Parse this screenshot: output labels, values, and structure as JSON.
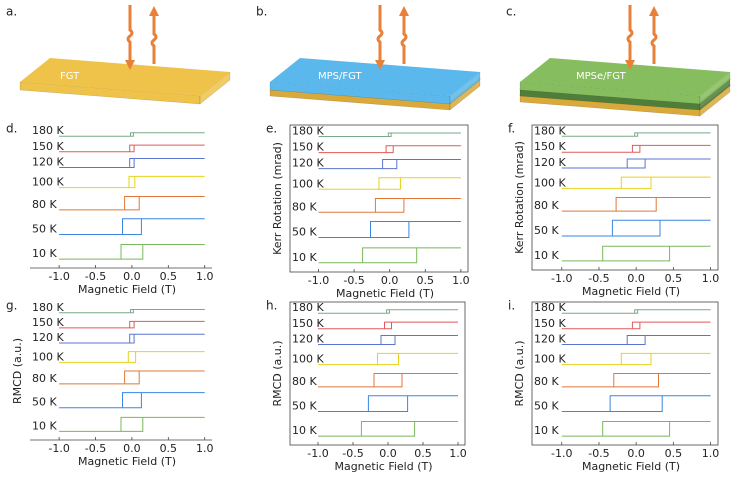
{
  "diagrams": [
    {
      "label": "a.",
      "material": "FGT",
      "top_color": "#efc24a",
      "layers": [
        "#efc24a"
      ]
    },
    {
      "label": "b.",
      "material": "MPS/FGT",
      "top_color": "#5ab8ec",
      "layers": [
        "#d9a93a",
        "#5ab8ec"
      ]
    },
    {
      "label": "c.",
      "material": "MPSe/FGT",
      "top_color": "#86bd5e",
      "layers": [
        "#d9a93a",
        "#4f7d3a",
        "#86bd5e"
      ]
    }
  ],
  "chart_data": [
    {
      "type": "line",
      "panel_label": "d.",
      "xlabel": "Magnetic Field (T)",
      "frame": false,
      "xlim": [
        -1.4,
        1.1
      ],
      "ylim": [
        -0.8,
        12
      ],
      "xticks": [
        {
          "value": -1,
          "label": "-1.0"
        },
        {
          "value": -0.5,
          "label": "-0.5"
        },
        {
          "value": 0,
          "label": "0.0"
        },
        {
          "value": 0.5,
          "label": "0.5"
        },
        {
          "value": 1,
          "label": "1.0"
        }
      ],
      "series": [
        {
          "name": "180 K",
          "color": "#7aa88a",
          "x": [
            -1,
            0.02,
            0.02,
            1,
            -0.02,
            -0.02
          ],
          "values": [
            11,
            11,
            11.3,
            11.3,
            11.3,
            11
          ]
        },
        {
          "name": "150 K",
          "color": "#e05a5a",
          "x": [
            -1,
            0.03,
            0.03,
            1,
            -0.03,
            -0.03
          ],
          "values": [
            9.6,
            9.6,
            10.2,
            10.2,
            10.2,
            9.6
          ]
        },
        {
          "name": "120 K",
          "color": "#5a74d0",
          "x": [
            -1,
            0.03,
            0.03,
            1,
            -0.03,
            -0.03
          ],
          "values": [
            8.2,
            8.2,
            9,
            9,
            9,
            8.2
          ]
        },
        {
          "name": "100 K",
          "color": "#e6d21a",
          "x": [
            -1,
            0.04,
            0.04,
            1,
            -0.04,
            -0.04
          ],
          "values": [
            6.4,
            6.4,
            7.4,
            7.4,
            7.4,
            6.4
          ]
        },
        {
          "name": "80 K",
          "color": "#e0783a",
          "x": [
            -1,
            0.1,
            0.1,
            1,
            -0.1,
            -0.1
          ],
          "values": [
            4.4,
            4.4,
            5.6,
            5.6,
            5.6,
            4.4
          ]
        },
        {
          "name": "50 K",
          "color": "#3a86e0",
          "x": [
            -1,
            0.13,
            0.13,
            1,
            -0.13,
            -0.13
          ],
          "values": [
            2.2,
            2.2,
            3.6,
            3.6,
            3.6,
            2.2
          ]
        },
        {
          "name": "10 K",
          "color": "#78b85a",
          "x": [
            -1,
            0.15,
            0.15,
            1,
            -0.15,
            -0.15
          ],
          "values": [
            0,
            0,
            1.3,
            1.3,
            1.3,
            0
          ]
        }
      ]
    },
    {
      "type": "line",
      "panel_label": "e.",
      "xlabel": "Magnetic Field (T)",
      "ylabel": "Kerr Rotation (mrad)",
      "frame": true,
      "xlim": [
        -1.4,
        1.1
      ],
      "ylim": [
        -0.8,
        12
      ],
      "xticks": [
        {
          "value": -1,
          "label": "-1.0"
        },
        {
          "value": -0.5,
          "label": "-0.5"
        },
        {
          "value": 0,
          "label": "0.0"
        },
        {
          "value": 0.5,
          "label": "0.5"
        },
        {
          "value": 1,
          "label": "1.0"
        }
      ],
      "series": [
        {
          "name": "180 K",
          "color": "#7aa88a",
          "x": [
            -1,
            0.02,
            0.02,
            1,
            -0.02,
            -0.02
          ],
          "values": [
            11,
            11,
            11.3,
            11.3,
            11.3,
            11
          ]
        },
        {
          "name": "150 K",
          "color": "#e05a5a",
          "x": [
            -1,
            0.05,
            0.05,
            1,
            -0.05,
            -0.05
          ],
          "values": [
            9.6,
            9.6,
            10.2,
            10.2,
            10.2,
            9.6
          ]
        },
        {
          "name": "120 K",
          "color": "#5a74d0",
          "x": [
            -1,
            0.1,
            0.1,
            1,
            -0.1,
            -0.1
          ],
          "values": [
            8.2,
            8.2,
            9,
            9,
            9,
            8.2
          ]
        },
        {
          "name": "100 K",
          "color": "#e6d21a",
          "x": [
            -1,
            0.15,
            0.15,
            1,
            -0.15,
            -0.15
          ],
          "values": [
            6.4,
            6.4,
            7.4,
            7.4,
            7.4,
            6.4
          ]
        },
        {
          "name": "80 K",
          "color": "#e0783a",
          "x": [
            -1,
            0.2,
            0.2,
            1,
            -0.2,
            -0.2
          ],
          "values": [
            4.4,
            4.4,
            5.6,
            5.6,
            5.6,
            4.4
          ]
        },
        {
          "name": "50 K",
          "color": "#3a86e0",
          "x": [
            -1,
            0.27,
            0.27,
            1,
            -0.27,
            -0.27
          ],
          "values": [
            2.2,
            2.2,
            3.6,
            3.6,
            3.6,
            2.2
          ]
        },
        {
          "name": "10 K",
          "color": "#78b85a",
          "x": [
            -1,
            0.38,
            0.38,
            1,
            -0.38,
            -0.38
          ],
          "values": [
            0,
            0,
            1.3,
            1.3,
            1.3,
            0
          ]
        }
      ]
    },
    {
      "type": "line",
      "panel_label": "f.",
      "xlabel": "Magnetic Field (T)",
      "ylabel": "Kerr Rotation (mrad)",
      "frame": true,
      "xlim": [
        -1.4,
        1.1
      ],
      "ylim": [
        -0.8,
        12
      ],
      "xticks": [
        {
          "value": -1,
          "label": "-1.0"
        },
        {
          "value": -0.5,
          "label": "-0.5"
        },
        {
          "value": 0,
          "label": "0.0"
        },
        {
          "value": 0.5,
          "label": "0.5"
        },
        {
          "value": 1,
          "label": "1.0"
        }
      ],
      "series": [
        {
          "name": "180 K",
          "color": "#7aa88a",
          "x": [
            -1,
            0.02,
            0.02,
            1,
            -0.02,
            -0.02
          ],
          "values": [
            11,
            11,
            11.3,
            11.3,
            11.3,
            11
          ]
        },
        {
          "name": "150 K",
          "color": "#e05a5a",
          "x": [
            -1,
            0.05,
            0.05,
            1,
            -0.05,
            -0.05
          ],
          "values": [
            9.6,
            9.6,
            10.2,
            10.2,
            10.2,
            9.6
          ]
        },
        {
          "name": "120 K",
          "color": "#5a74d0",
          "x": [
            -1,
            0.12,
            0.12,
            1,
            -0.12,
            -0.12
          ],
          "values": [
            8.2,
            8.2,
            9,
            9,
            9,
            8.2
          ]
        },
        {
          "name": "100 K",
          "color": "#e6d21a",
          "x": [
            -1,
            0.2,
            0.2,
            1,
            -0.2,
            -0.2
          ],
          "values": [
            6.4,
            6.4,
            7.4,
            7.4,
            7.4,
            6.4
          ]
        },
        {
          "name": "80 K",
          "color": "#e0783a",
          "x": [
            -1,
            0.27,
            0.27,
            1,
            -0.27,
            -0.27
          ],
          "values": [
            4.4,
            4.4,
            5.6,
            5.6,
            5.6,
            4.4
          ]
        },
        {
          "name": "50 K",
          "color": "#3a86e0",
          "x": [
            -1,
            0.32,
            0.32,
            1,
            -0.32,
            -0.32
          ],
          "values": [
            2.2,
            2.2,
            3.6,
            3.6,
            3.6,
            2.2
          ]
        },
        {
          "name": "10 K",
          "color": "#78b85a",
          "x": [
            -1,
            0.45,
            0.45,
            1,
            -0.45,
            -0.45
          ],
          "values": [
            0,
            0,
            1.3,
            1.3,
            1.3,
            0
          ]
        }
      ]
    },
    {
      "type": "line",
      "panel_label": "g.",
      "xlabel": "Magnetic Field (T)",
      "ylabel": "RMCD  (a.u.)",
      "frame": false,
      "xlim": [
        -1.4,
        1.1
      ],
      "ylim": [
        -0.8,
        12
      ],
      "xticks": [
        {
          "value": -1,
          "label": "-1.0"
        },
        {
          "value": -0.5,
          "label": "-0.5"
        },
        {
          "value": 0,
          "label": "0.0"
        },
        {
          "value": 0.5,
          "label": "0.5"
        },
        {
          "value": 1,
          "label": "1.0"
        }
      ],
      "series": [
        {
          "name": "180 K",
          "color": "#7aa88a",
          "x": [
            -1,
            0.02,
            0.02,
            1,
            -0.02,
            -0.02
          ],
          "values": [
            11,
            11,
            11.3,
            11.3,
            11.3,
            11
          ]
        },
        {
          "name": "150 K",
          "color": "#e05a5a",
          "x": [
            -1,
            0.03,
            0.03,
            1,
            -0.03,
            -0.03
          ],
          "values": [
            9.6,
            9.6,
            10.2,
            10.2,
            10.2,
            9.6
          ]
        },
        {
          "name": "120 K",
          "color": "#5a74d0",
          "x": [
            -1,
            0.03,
            0.03,
            1,
            -0.03,
            -0.03
          ],
          "values": [
            8.2,
            8.2,
            9,
            9,
            9,
            8.2
          ]
        },
        {
          "name": "100 K",
          "color": "#e6d21a",
          "x": [
            -1,
            0.05,
            0.05,
            1,
            -0.05,
            -0.05
          ],
          "values": [
            6.4,
            6.4,
            7.4,
            7.4,
            7.4,
            6.4
          ]
        },
        {
          "name": "80 K",
          "color": "#e0783a",
          "x": [
            -1,
            0.1,
            0.1,
            1,
            -0.1,
            -0.1
          ],
          "values": [
            4.4,
            4.4,
            5.6,
            5.6,
            5.6,
            4.4
          ]
        },
        {
          "name": "50 K",
          "color": "#3a86e0",
          "x": [
            -1,
            0.13,
            0.13,
            1,
            -0.13,
            -0.13
          ],
          "values": [
            2.2,
            2.2,
            3.6,
            3.6,
            3.6,
            2.2
          ]
        },
        {
          "name": "10 K",
          "color": "#78b85a",
          "x": [
            -1,
            0.15,
            0.15,
            1,
            -0.15,
            -0.15
          ],
          "values": [
            0,
            0,
            1.3,
            1.3,
            1.3,
            0
          ]
        }
      ]
    },
    {
      "type": "line",
      "panel_label": "h.",
      "xlabel": "Magnetic Field (T)",
      "ylabel": "RMCD  (a.u.)",
      "frame": true,
      "xlim": [
        -1.4,
        1.1
      ],
      "ylim": [
        -0.8,
        12
      ],
      "xticks": [
        {
          "value": -1,
          "label": "-1.0"
        },
        {
          "value": -0.5,
          "label": "-0.5"
        },
        {
          "value": 0,
          "label": "0.0"
        },
        {
          "value": 0.5,
          "label": "0.5"
        },
        {
          "value": 1,
          "label": "1.0"
        }
      ],
      "series": [
        {
          "name": "180 K",
          "color": "#7aa88a",
          "x": [
            -1,
            0.02,
            0.02,
            1,
            -0.02,
            -0.02
          ],
          "values": [
            11,
            11,
            11.3,
            11.3,
            11.3,
            11
          ]
        },
        {
          "name": "150 K",
          "color": "#e05a5a",
          "x": [
            -1,
            0.05,
            0.05,
            1,
            -0.05,
            -0.05
          ],
          "values": [
            9.6,
            9.6,
            10.2,
            10.2,
            10.2,
            9.6
          ]
        },
        {
          "name": "120 K",
          "color": "#5a74d0",
          "x": [
            -1,
            0.1,
            0.1,
            1,
            -0.1,
            -0.1
          ],
          "values": [
            8.2,
            8.2,
            9,
            9,
            9,
            8.2
          ]
        },
        {
          "name": "100 K",
          "color": "#e6d21a",
          "x": [
            -1,
            0.15,
            0.15,
            1,
            -0.15,
            -0.15
          ],
          "values": [
            6.4,
            6.4,
            7.4,
            7.4,
            7.4,
            6.4
          ]
        },
        {
          "name": "80 K",
          "color": "#e0783a",
          "x": [
            -1,
            0.2,
            0.2,
            1,
            -0.2,
            -0.2
          ],
          "values": [
            4.4,
            4.4,
            5.6,
            5.6,
            5.6,
            4.4
          ]
        },
        {
          "name": "50 K",
          "color": "#3a86e0",
          "x": [
            -1,
            0.28,
            0.28,
            1,
            -0.28,
            -0.28
          ],
          "values": [
            2.2,
            2.2,
            3.6,
            3.6,
            3.6,
            2.2
          ]
        },
        {
          "name": "10 K",
          "color": "#78b85a",
          "x": [
            -1,
            0.38,
            0.38,
            1,
            -0.38,
            -0.38
          ],
          "values": [
            0,
            0,
            1.3,
            1.3,
            1.3,
            0
          ]
        }
      ]
    },
    {
      "type": "line",
      "panel_label": "i.",
      "xlabel": "Magnetic Field (T)",
      "ylabel": "RMCD  (a.u.)",
      "frame": true,
      "xlim": [
        -1.4,
        1.1
      ],
      "ylim": [
        -0.8,
        12
      ],
      "xticks": [
        {
          "value": -1,
          "label": "-1.0"
        },
        {
          "value": -0.5,
          "label": "-0.5"
        },
        {
          "value": 0,
          "label": "0.0"
        },
        {
          "value": 0.5,
          "label": "0.5"
        },
        {
          "value": 1,
          "label": "1.0"
        }
      ],
      "series": [
        {
          "name": "180 K",
          "color": "#7aa88a",
          "x": [
            -1,
            0.02,
            0.02,
            1,
            -0.02,
            -0.02
          ],
          "values": [
            11,
            11,
            11.3,
            11.3,
            11.3,
            11
          ]
        },
        {
          "name": "150 K",
          "color": "#e05a5a",
          "x": [
            -1,
            0.05,
            0.05,
            1,
            -0.05,
            -0.05
          ],
          "values": [
            9.6,
            9.6,
            10.2,
            10.2,
            10.2,
            9.6
          ]
        },
        {
          "name": "120 K",
          "color": "#5a74d0",
          "x": [
            -1,
            0.12,
            0.12,
            1,
            -0.12,
            -0.12
          ],
          "values": [
            8.2,
            8.2,
            9,
            9,
            9,
            8.2
          ]
        },
        {
          "name": "100 K",
          "color": "#e6d21a",
          "x": [
            -1,
            0.2,
            0.2,
            1,
            -0.2,
            -0.2
          ],
          "values": [
            6.4,
            6.4,
            7.4,
            7.4,
            7.4,
            6.4
          ]
        },
        {
          "name": "80 K",
          "color": "#e0783a",
          "x": [
            -1,
            0.3,
            0.3,
            1,
            -0.3,
            -0.3
          ],
          "values": [
            4.4,
            4.4,
            5.6,
            5.6,
            5.6,
            4.4
          ]
        },
        {
          "name": "50 K",
          "color": "#3a86e0",
          "x": [
            -1,
            0.35,
            0.35,
            1,
            -0.35,
            -0.35
          ],
          "values": [
            2.2,
            2.2,
            3.6,
            3.6,
            3.6,
            2.2
          ]
        },
        {
          "name": "10 K",
          "color": "#78b85a",
          "x": [
            -1,
            0.45,
            0.45,
            1,
            -0.45,
            -0.45
          ],
          "values": [
            0,
            0,
            1.3,
            1.3,
            1.3,
            0
          ]
        }
      ]
    }
  ]
}
